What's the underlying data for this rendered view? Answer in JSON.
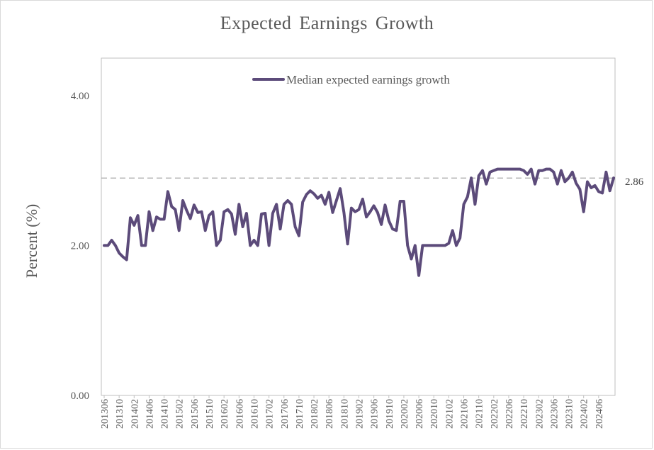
{
  "chart_data": {
    "type": "line",
    "title": "Expected Earnings Growth",
    "ylabel": "Percent (%)",
    "xlabel": "",
    "ylim": [
      0,
      4.5
    ],
    "y_ticks": [
      "0.00",
      "2.00",
      "4.00"
    ],
    "y_tick_values": [
      0,
      2,
      4
    ],
    "x_tick_labels": [
      "201306",
      "201310",
      "201402",
      "201406",
      "201410",
      "201502",
      "201506",
      "201510",
      "201602",
      "201606",
      "201610",
      "201702",
      "201706",
      "201710",
      "201802",
      "201806",
      "201810",
      "201902",
      "201906",
      "201910",
      "202002",
      "202006",
      "202010",
      "202102",
      "202106",
      "202110",
      "202202",
      "202206",
      "202210",
      "202302",
      "202306",
      "202310",
      "202402",
      "202406"
    ],
    "start_month": "2013-06",
    "grid": false,
    "legend_position": "top-center",
    "line_color": "#5c4b7a",
    "reference_line": {
      "value": 2.9,
      "label": "2.86",
      "color": "#a6a6a6"
    },
    "series": [
      {
        "name": "Median expected earnings growth",
        "values": [
          2.0,
          2.0,
          2.07,
          2.0,
          1.9,
          1.85,
          1.81,
          2.37,
          2.27,
          2.4,
          2.0,
          2.0,
          2.45,
          2.2,
          2.38,
          2.35,
          2.35,
          2.72,
          2.52,
          2.48,
          2.2,
          2.6,
          2.47,
          2.36,
          2.54,
          2.44,
          2.45,
          2.2,
          2.4,
          2.45,
          2.0,
          2.07,
          2.45,
          2.48,
          2.42,
          2.15,
          2.55,
          2.25,
          2.43,
          2.0,
          2.07,
          2.0,
          2.42,
          2.43,
          2.0,
          2.43,
          2.55,
          2.22,
          2.55,
          2.6,
          2.55,
          2.25,
          2.13,
          2.58,
          2.68,
          2.73,
          2.69,
          2.63,
          2.67,
          2.55,
          2.71,
          2.44,
          2.6,
          2.76,
          2.44,
          2.02,
          2.5,
          2.45,
          2.48,
          2.62,
          2.38,
          2.45,
          2.53,
          2.44,
          2.28,
          2.54,
          2.33,
          2.22,
          2.2,
          2.59,
          2.59,
          2.0,
          1.82,
          2.0,
          1.6,
          2.0,
          2.0,
          2.0,
          2.0,
          2.0,
          2.0,
          2.0,
          2.03,
          2.2,
          2.0,
          2.1,
          2.55,
          2.65,
          2.9,
          2.55,
          2.93,
          3.0,
          2.82,
          2.98,
          3.0,
          3.02,
          3.02,
          3.02,
          3.02,
          3.02,
          3.02,
          3.02,
          3.0,
          2.95,
          3.02,
          2.82,
          3.0,
          3.0,
          3.02,
          3.02,
          2.98,
          2.82,
          3.0,
          2.85,
          2.9,
          2.98,
          2.83,
          2.75,
          2.45,
          2.85,
          2.77,
          2.8,
          2.72,
          2.7,
          2.98,
          2.73,
          2.9
        ]
      }
    ]
  }
}
